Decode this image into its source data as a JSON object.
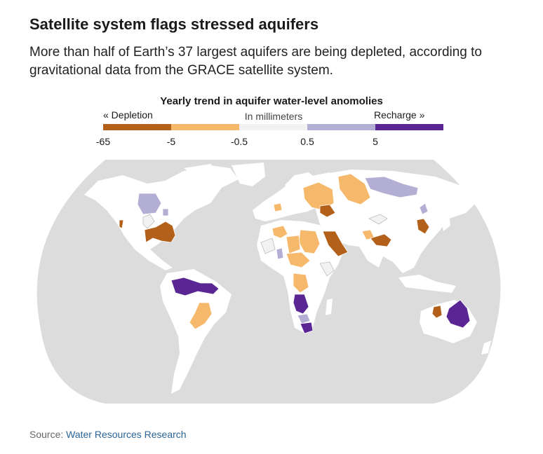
{
  "headline": "Satellite system flags stressed aquifers",
  "dek": "More than half of Earth’s 37 largest aquifers are being depleted, according to gravitational data from the GRACE satellite system.",
  "legend": {
    "title": "Yearly trend in aquifer water-level anomolies",
    "left_label": "« Depletion",
    "unit_label": "In millimeters",
    "right_label": "Recharge »",
    "ticks": [
      "-65",
      "-5",
      "-0.5",
      "0.5",
      "5"
    ],
    "colors": [
      "#b3601a",
      "#f6b86a",
      "#f2f2f2",
      "#b3aed3",
      "#5a2693"
    ]
  },
  "map": {
    "land_color": "#ffffff",
    "ocean_color": "#dcdcdc",
    "aquifer_classes": {
      "strong_depletion": "#b3601a",
      "depletion": "#f6b86a",
      "neutral": "#f2f2f2",
      "recharge": "#b3aed3",
      "strong_recharge": "#5a2693"
    }
  },
  "source": {
    "label": "Source:",
    "link_text": "Water Resources Research"
  }
}
